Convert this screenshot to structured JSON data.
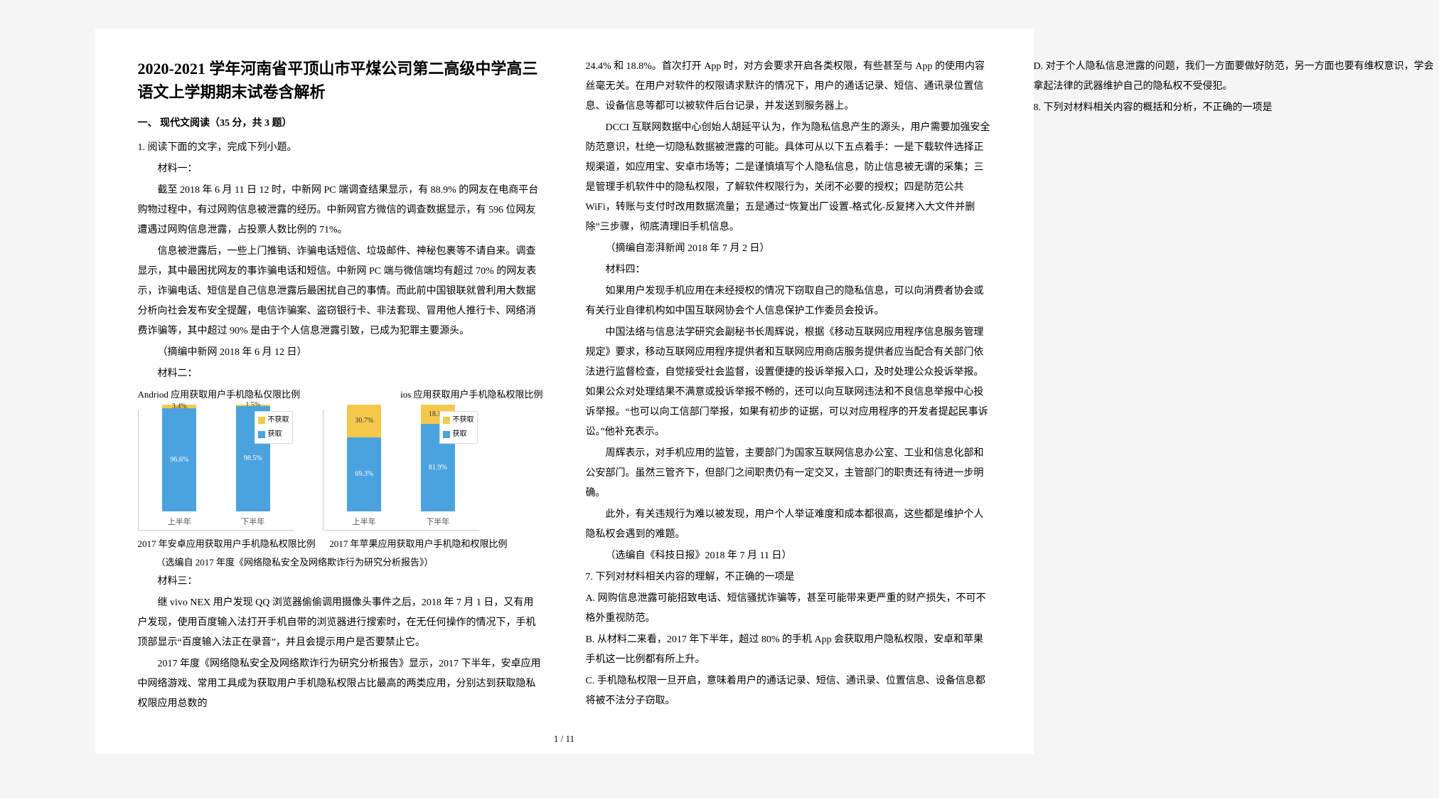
{
  "title": "2020-2021 学年河南省平顶山市平煤公司第二高级中学高三语文上学期期末试卷含解析",
  "section1": "一、 现代文阅读（35 分，共 3 题）",
  "q1": "1. 阅读下面的文字，完成下列小题。",
  "mat1_label": "材料一：",
  "mat1_p1": "截至 2018 年 6 月 11 日 12 时，中新网 PC 端调查结果显示，有 88.9% 的网友在电商平台购物过程中，有过网购信息被泄露的经历。中新网官方微信的调查数据显示，有 596 位网友遭遇过网购信息泄露，占投票人数比例的 71%。",
  "mat1_p2": "信息被泄露后，一些上门推销、诈骗电话短信、垃圾邮件、神秘包裹等不请自来。调查显示，其中最困扰网友的事诈骗电话和短信。中新网 PC 端与微信端均有超过 70% 的网友表示，诈骗电话、短信是自己信息泄露后最困扰自己的事情。而此前中国银联就曾利用大数据分析向社会发布安全提醒，电信诈骗案、盗窃银行卡、非法套现、冒用他人推行卡、网络消费诈骗等，其中超过 90% 是由于个人信息泄露引致，已成为犯罪主要源头。",
  "mat1_src": "（摘编中新网 2018 年 6 月 12 日）",
  "mat2_label": "材料二：",
  "chart_titles": {
    "left": "Andriod 应用获取用户手机隐私仅限比例",
    "right": "ios 应用获取用户手机隐私权限比例"
  },
  "android_chart": {
    "type": "stacked-bar",
    "categories": [
      "上半年",
      "下半年"
    ],
    "series": [
      {
        "name": "获取",
        "color": "#4aa3df",
        "values": [
          96.6,
          98.5
        ]
      },
      {
        "name": "不获取",
        "color": "#f5c84c",
        "values": [
          3.4,
          1.5
        ]
      }
    ],
    "ylim": [
      0,
      100
    ],
    "label_fontsize": 11,
    "background_color": "#ffffff"
  },
  "ios_chart": {
    "type": "stacked-bar",
    "categories": [
      "上半年",
      "下半年"
    ],
    "series": [
      {
        "name": "获取",
        "color": "#4aa3df",
        "values": [
          69.3,
          81.9
        ]
      },
      {
        "name": "不获取",
        "color": "#f5c84c",
        "values": [
          30.7,
          18.1
        ]
      }
    ],
    "ylim": [
      0,
      100
    ],
    "label_fontsize": 11,
    "background_color": "#ffffff"
  },
  "legend_labels": {
    "no": "不获取",
    "yes": "获取"
  },
  "chart_caption_left": "2017 年安卓应用获取用户手机隐私权限比例",
  "chart_caption_right": "2017 年苹果应用获取用户手机隐和权限比例",
  "mat2_src": "（选编自 2017 年度《网络隐私安全及网络欺诈行为研究分析报告》）",
  "mat3_label": "材料三：",
  "mat3_p1": "继 vivo NEX 用户发现 QQ 浏览器偷偷调用摄像头事件之后，2018 年 7 月 1 日，又有用户发现，使用百度输入法打开手机自带的浏览器进行搜索时，在无任何操作的情况下，手机顶部显示“百度输入法正在录音”，并且会提示用户是否要禁止它。",
  "mat3_p2": "2017 年度《网络隐私安全及网络欺诈行为研究分析报告》显示，2017 下半年，安卓应用中网络游戏、常用工具成为获取用户手机隐私权限占比最高的两类应用，分别达到获取隐私权限应用总数的",
  "mat3_p3": "24.4% 和 18.8%。首次打开 App 时，对方会要求开启各类权限，有些甚至与 App 的使用内容丝毫无关。在用户对软件的权限请求默许的情况下，用户的通话记录、短信、通讯录位置信息、设备信息等都可以被软件后台记录，并发送到服务器上。",
  "mat3_p4": "DCCI 互联网数据中心创始人胡延平认为，作为隐私信息产生的源头，用户需要加强安全防范意识，杜绝一切隐私数据被泄露的可能。具体可从以下五点着手：一是下载软件选择正规渠道，如应用宝、安卓市场等；二是谨慎填写个人隐私信息，防止信息被无谓的采集；三是管理手机软件中的隐私权限，了解软件权限行为，关闭不必要的授权；四是防范公共 WiFi，转账与支付时改用数据流量；五是通过“恢复出厂设置-格式化-反复拷入大文件并删除”三步骤，彻底清理旧手机信息。",
  "mat3_src": "（摘编自澎湃新闻 2018 年 7 月 2 日）",
  "mat4_label": "材料四：",
  "mat4_p1": "如果用户发现手机应用在未经授权的情况下窃取自己的隐私信息，可以向消费者协会或有关行业自律机构如中国互联网协会个人信息保护工作委员会投诉。",
  "mat4_p2": "中国法络与信息法学研究会副秘书长周辉说，根据《移动互联网应用程序信息服务管理规定》要求，移动互联网应用程序提供者和互联网应用商店服务提供者应当配合有关部门依法进行监督检查，自觉接受社会监督，设置便捷的投诉举报入口，及时处理公众投诉举报。如果公众对处理结果不满意或投诉举报不畅的，还可以向互联网违法和不良信息举报中心投诉举报。“也可以向工信部门举报，如果有初步的证据，可以对应用程序的开发者提起民事诉讼。”他补充表示。",
  "mat4_p3": "周辉表示，对手机应用的监管，主要部门为国家互联网信息办公室、工业和信息化部和公安部门。虽然三管齐下，但部门之间职责仍有一定交叉，主管部门的职责还有待进一步明确。",
  "mat4_p4": "此外，有关违规行为难以被发现，用户个人举证难度和成本都很高，这些都是维护个人隐私权会遇到的难题。",
  "mat4_src": "（选编自《科技日报》2018 年 7 月 11 日）",
  "q7": "7. 下列对材料相关内容的理解，不正确的一项是",
  "q7_a": "A. 网购信息泄露可能招致电话、短信骚扰诈骗等，甚至可能带来更严重的财产损失，不可不格外重视防范。",
  "q7_b": "B. 从材料二来看，2017 年下半年，超过 80% 的手机 App 会获取用户隐私权限，安卓和苹果手机这一比例都有所上升。",
  "q7_c": "C. 手机隐私权限一旦开启，意味着用户的通话记录、短信、通讯录、位置信息、设备信息都将被不法分子窃取。",
  "q7_d": "D. 对于个人隐私信息泄露的问题，我们一方面要做好防范，另一方面也要有维权意识，学会拿起法律的武器维护自己的隐私权不受侵犯。",
  "q8": "8. 下列对材料相关内容的概括和分析，不正确的一项是",
  "pagenum": "1 / 11"
}
